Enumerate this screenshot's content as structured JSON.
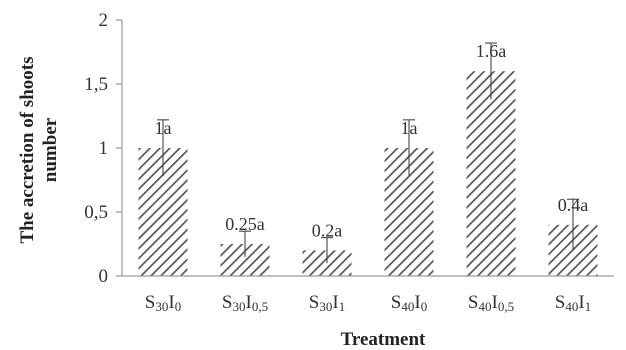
{
  "chart_data": {
    "type": "bar",
    "ylabel_line1": "The accretion of shoots",
    "ylabel_line2": "number",
    "xlabel": "Treatment",
    "ylim": [
      0,
      2
    ],
    "y_ticks": [
      {
        "value": 0,
        "label": "0"
      },
      {
        "value": 0.5,
        "label": "0,5"
      },
      {
        "value": 1,
        "label": "1"
      },
      {
        "value": 1.5,
        "label": "1,5"
      },
      {
        "value": 2,
        "label": "2"
      }
    ],
    "categories": [
      {
        "base": "S",
        "s1": "30",
        "mid": "I",
        "s2": "0"
      },
      {
        "base": "S",
        "s1": "30",
        "mid": "I",
        "s2": "0,5"
      },
      {
        "base": "S",
        "s1": "30",
        "mid": "I",
        "s2": "1"
      },
      {
        "base": "S",
        "s1": "40",
        "mid": "I",
        "s2": "0"
      },
      {
        "base": "S",
        "s1": "40",
        "mid": "I",
        "s2": "0,5"
      },
      {
        "base": "S",
        "s1": "40",
        "mid": "I",
        "s2": "1"
      }
    ],
    "values": [
      1,
      0.25,
      0.2,
      1,
      1.6,
      0.4
    ],
    "errors": [
      0.22,
      0.1,
      0.1,
      0.22,
      0.22,
      0.2
    ],
    "data_labels": [
      "1a",
      "0.25a",
      "0.2a",
      "1a",
      "1.6a",
      "0.4a"
    ],
    "bar_pattern": "diagonal-hatch",
    "bar_color": "#555555",
    "axis_color": "#9a9a9a",
    "grid": false,
    "legend": "none"
  }
}
